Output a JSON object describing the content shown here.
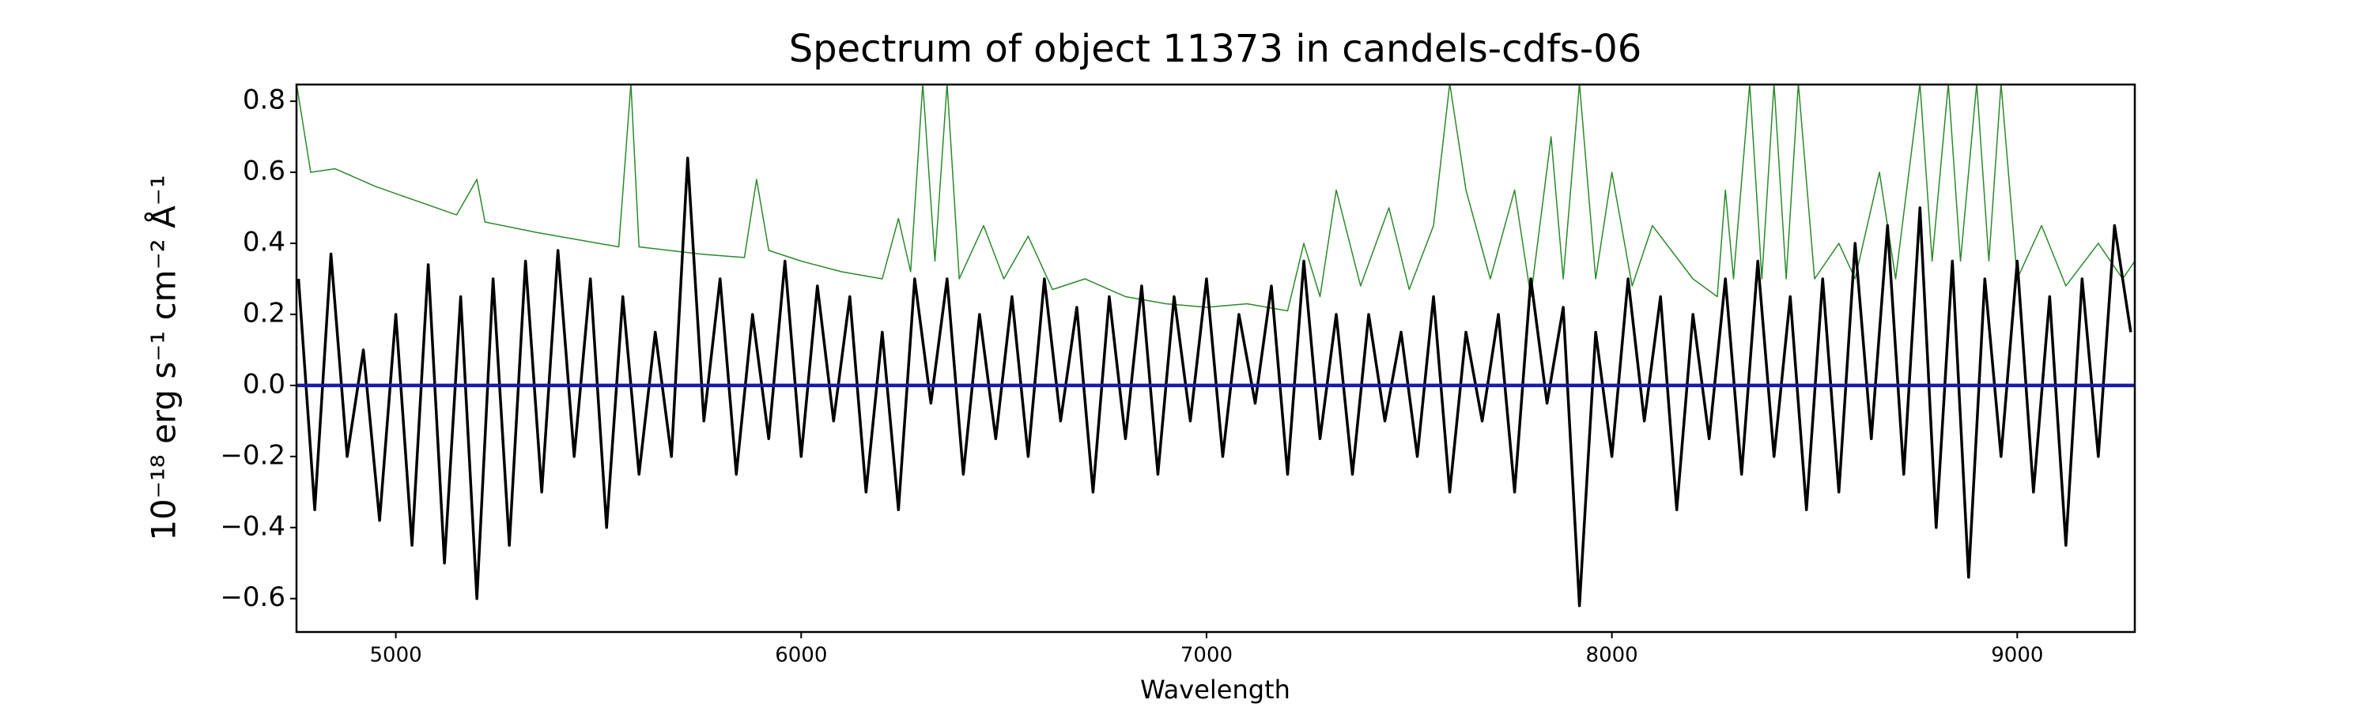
{
  "chart_data": {
    "type": "line",
    "title": "Spectrum of object 11373 in candels-cdfs-06",
    "x_label": "Wavelength",
    "y_label": "10⁻¹⁸ erg s⁻¹ cm⁻² Å⁻¹",
    "xlim": [
      4755,
      9290
    ],
    "ylim": [
      -0.694,
      0.847
    ],
    "xticks": [
      5000,
      6000,
      7000,
      8000,
      9000
    ],
    "yticks": [
      {
        "value": -0.6,
        "label": "−0.6"
      },
      {
        "value": -0.4,
        "label": "−0.4"
      },
      {
        "value": -0.2,
        "label": "−0.2"
      },
      {
        "value": 0,
        "label": "0.0"
      },
      0.2,
      0.4,
      0.6,
      0.8
    ],
    "series": [
      {
        "color": "#2a8a2a",
        "width": 1.5,
        "x": [
          4755,
          4790,
          4850,
          4950,
          5050,
          5150,
          5200,
          5220,
          5350,
          5450,
          5550,
          5580,
          5600,
          5750,
          5860,
          5890,
          5920,
          6000,
          6100,
          6200,
          6240,
          6270,
          6300,
          6330,
          6360,
          6390,
          6450,
          6500,
          6560,
          6620,
          6700,
          6800,
          6900,
          7000,
          7100,
          7200,
          7240,
          7280,
          7320,
          7380,
          7450,
          7500,
          7560,
          7600,
          7640,
          7700,
          7760,
          7800,
          7850,
          7880,
          7920,
          7960,
          8000,
          8050,
          8100,
          8200,
          8260,
          8280,
          8300,
          8340,
          8370,
          8400,
          8430,
          8460,
          8500,
          8560,
          8600,
          8660,
          8700,
          8760,
          8790,
          8830,
          8860,
          8900,
          8930,
          8960,
          9000,
          9060,
          9120,
          9200,
          9260,
          9290
        ],
        "values": [
          0.85,
          0.6,
          0.61,
          0.56,
          0.52,
          0.48,
          0.58,
          0.46,
          0.43,
          0.41,
          0.39,
          0.85,
          0.39,
          0.37,
          0.36,
          0.58,
          0.38,
          0.35,
          0.32,
          0.3,
          0.47,
          0.32,
          0.85,
          0.35,
          0.85,
          0.3,
          0.45,
          0.3,
          0.42,
          0.27,
          0.3,
          0.25,
          0.23,
          0.22,
          0.23,
          0.21,
          0.4,
          0.25,
          0.55,
          0.28,
          0.5,
          0.27,
          0.45,
          0.85,
          0.55,
          0.3,
          0.55,
          0.25,
          0.7,
          0.3,
          0.85,
          0.3,
          0.6,
          0.28,
          0.45,
          0.3,
          0.25,
          0.55,
          0.3,
          0.85,
          0.3,
          0.85,
          0.3,
          0.85,
          0.3,
          0.4,
          0.3,
          0.6,
          0.3,
          0.85,
          0.35,
          0.85,
          0.35,
          0.85,
          0.35,
          0.85,
          0.3,
          0.45,
          0.28,
          0.4,
          0.3,
          0.35
        ]
      },
      {
        "color": "#000000",
        "width": 3.5,
        "x": [
          4760,
          4800,
          4840,
          4880,
          4920,
          4960,
          5000,
          5040,
          5080,
          5120,
          5160,
          5200,
          5240,
          5280,
          5320,
          5360,
          5400,
          5440,
          5480,
          5520,
          5560,
          5600,
          5640,
          5680,
          5720,
          5760,
          5800,
          5840,
          5880,
          5920,
          5960,
          6000,
          6040,
          6080,
          6120,
          6160,
          6200,
          6240,
          6280,
          6320,
          6360,
          6400,
          6440,
          6480,
          6520,
          6560,
          6600,
          6640,
          6680,
          6720,
          6760,
          6800,
          6840,
          6880,
          6920,
          6960,
          7000,
          7040,
          7080,
          7120,
          7160,
          7200,
          7240,
          7280,
          7320,
          7360,
          7400,
          7440,
          7480,
          7520,
          7560,
          7600,
          7640,
          7680,
          7720,
          7760,
          7800,
          7840,
          7880,
          7920,
          7960,
          8000,
          8040,
          8080,
          8120,
          8160,
          8200,
          8240,
          8280,
          8320,
          8360,
          8400,
          8440,
          8480,
          8520,
          8560,
          8600,
          8640,
          8680,
          8720,
          8760,
          8800,
          8840,
          8880,
          8920,
          8960,
          9000,
          9040,
          9080,
          9120,
          9160,
          9200,
          9240,
          9280
        ],
        "values": [
          0.3,
          -0.35,
          0.37,
          -0.2,
          0.1,
          -0.38,
          0.2,
          -0.45,
          0.34,
          -0.5,
          0.25,
          -0.6,
          0.3,
          -0.45,
          0.35,
          -0.3,
          0.38,
          -0.2,
          0.3,
          -0.4,
          0.25,
          -0.25,
          0.15,
          -0.2,
          0.64,
          -0.1,
          0.3,
          -0.25,
          0.2,
          -0.15,
          0.35,
          -0.2,
          0.28,
          -0.1,
          0.25,
          -0.3,
          0.15,
          -0.35,
          0.3,
          -0.05,
          0.3,
          -0.25,
          0.2,
          -0.15,
          0.25,
          -0.2,
          0.3,
          -0.1,
          0.22,
          -0.3,
          0.25,
          -0.15,
          0.28,
          -0.25,
          0.25,
          -0.1,
          0.3,
          -0.2,
          0.2,
          -0.05,
          0.28,
          -0.25,
          0.35,
          -0.15,
          0.2,
          -0.25,
          0.2,
          -0.1,
          0.15,
          -0.2,
          0.25,
          -0.3,
          0.15,
          -0.1,
          0.2,
          -0.3,
          0.3,
          -0.05,
          0.22,
          -0.62,
          0.15,
          -0.2,
          0.3,
          -0.1,
          0.25,
          -0.35,
          0.2,
          -0.15,
          0.3,
          -0.25,
          0.35,
          -0.2,
          0.25,
          -0.35,
          0.3,
          -0.3,
          0.4,
          -0.15,
          0.45,
          -0.25,
          0.5,
          -0.4,
          0.35,
          -0.54,
          0.3,
          -0.2,
          0.35,
          -0.3,
          0.25,
          -0.45,
          0.3,
          -0.2,
          0.45,
          0.15
        ]
      },
      {
        "color": "#1a1aa8",
        "width": 4.5,
        "x": [
          4755,
          9290
        ],
        "values": [
          0,
          0
        ]
      }
    ]
  }
}
